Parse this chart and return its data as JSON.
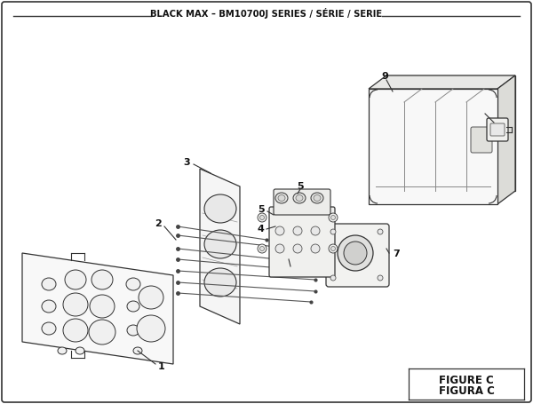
{
  "title": "BLACK MAX – BM10700J SERIES / SÉRIE / SERIE",
  "figure_label": "FIGURE C",
  "figura_label": "FIGURA C",
  "bg_color": "#ffffff",
  "border_color": "#333333",
  "text_color": "#111111"
}
